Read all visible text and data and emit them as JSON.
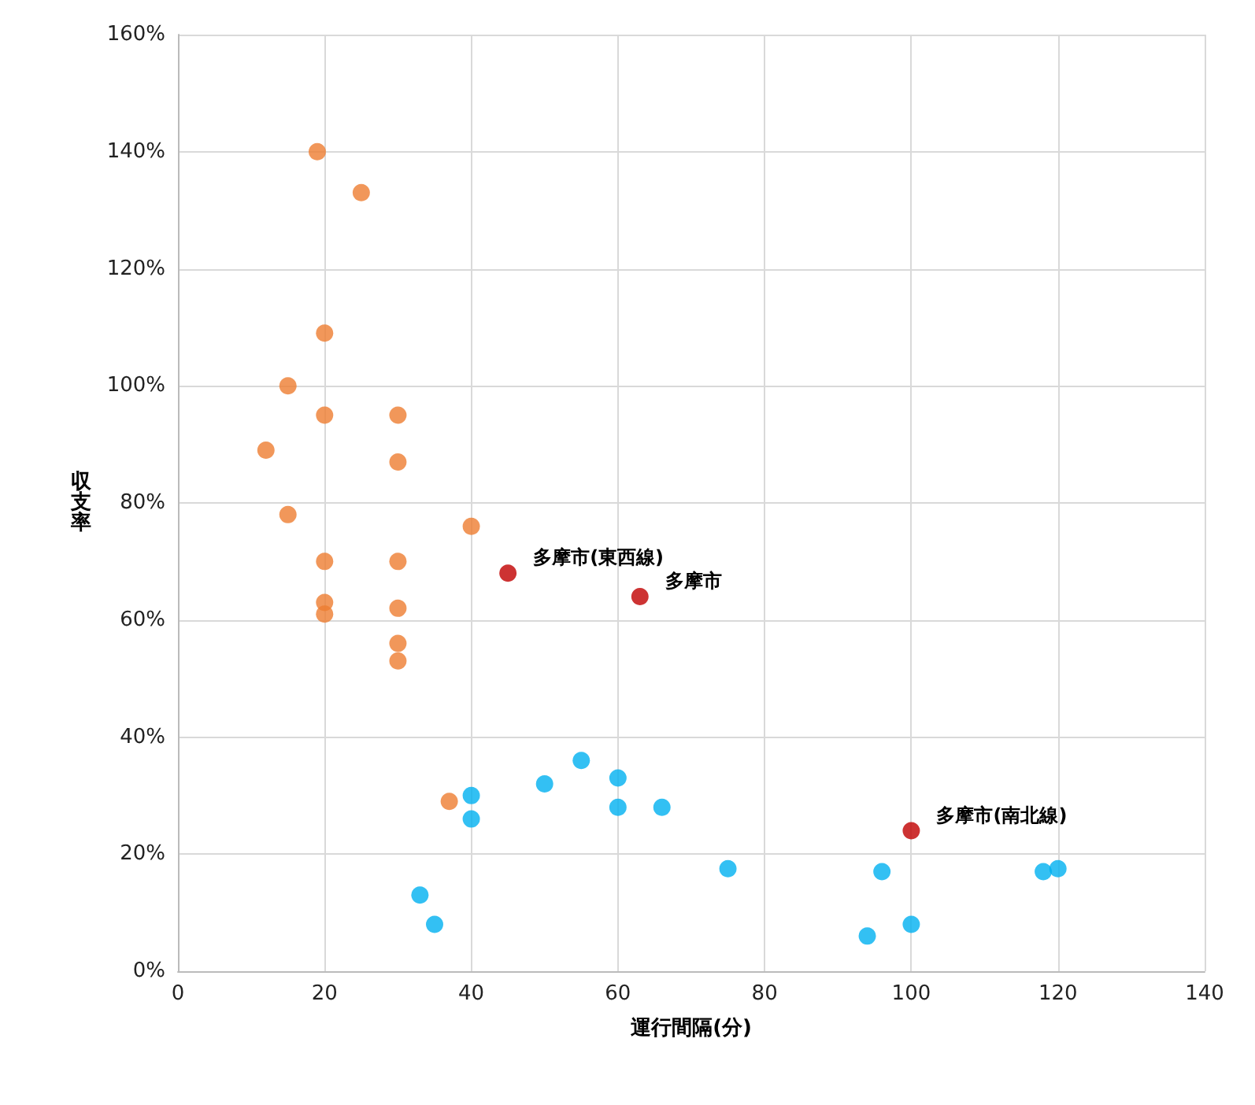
{
  "chart_data": {
    "type": "scatter",
    "xlabel": "運行間隔(分)",
    "ylabel": "収支率",
    "xlim": [
      0,
      140
    ],
    "xticks": [
      0,
      20,
      40,
      60,
      80,
      100,
      120,
      140
    ],
    "ylim": [
      0,
      160
    ],
    "yticks": [
      {
        "value": 0,
        "label": "0%"
      },
      {
        "value": 20,
        "label": "20%"
      },
      {
        "value": 40,
        "label": "40%"
      },
      {
        "value": 60,
        "label": "60%"
      },
      {
        "value": 80,
        "label": "80%"
      },
      {
        "value": 100,
        "label": "100%"
      },
      {
        "value": 120,
        "label": "120%"
      },
      {
        "value": 140,
        "label": "140%"
      },
      {
        "value": 160,
        "label": "160%"
      }
    ],
    "grid": true,
    "marker": "circle",
    "series": [
      {
        "color": "#ed7d31",
        "x": [
          19,
          25,
          20,
          15,
          20,
          30,
          12,
          30,
          15,
          40,
          20,
          30,
          20,
          20,
          30,
          30,
          30,
          37
        ],
        "values": [
          140,
          133,
          109,
          100,
          95,
          95,
          89,
          87,
          78,
          76,
          70,
          70,
          63,
          61,
          62,
          56,
          53,
          29
        ]
      },
      {
        "color": "#00b0f0",
        "x": [
          40,
          40,
          33,
          35,
          50,
          55,
          60,
          60,
          66,
          75,
          96,
          94,
          100,
          118,
          120
        ],
        "values": [
          30,
          26,
          13,
          8,
          32,
          36,
          33,
          28,
          28,
          17.5,
          17,
          6,
          8,
          17,
          17.5
        ]
      },
      {
        "color": "#c00000",
        "x": [
          45,
          63,
          100
        ],
        "values": [
          68,
          64,
          24
        ]
      }
    ],
    "annotations": [
      {
        "text": "多摩市(東西線)",
        "x": 45,
        "y": 68
      },
      {
        "text": "多摩市",
        "x": 63,
        "y": 64
      },
      {
        "text": "多摩市(南北線)",
        "x": 100,
        "y": 24
      }
    ]
  }
}
